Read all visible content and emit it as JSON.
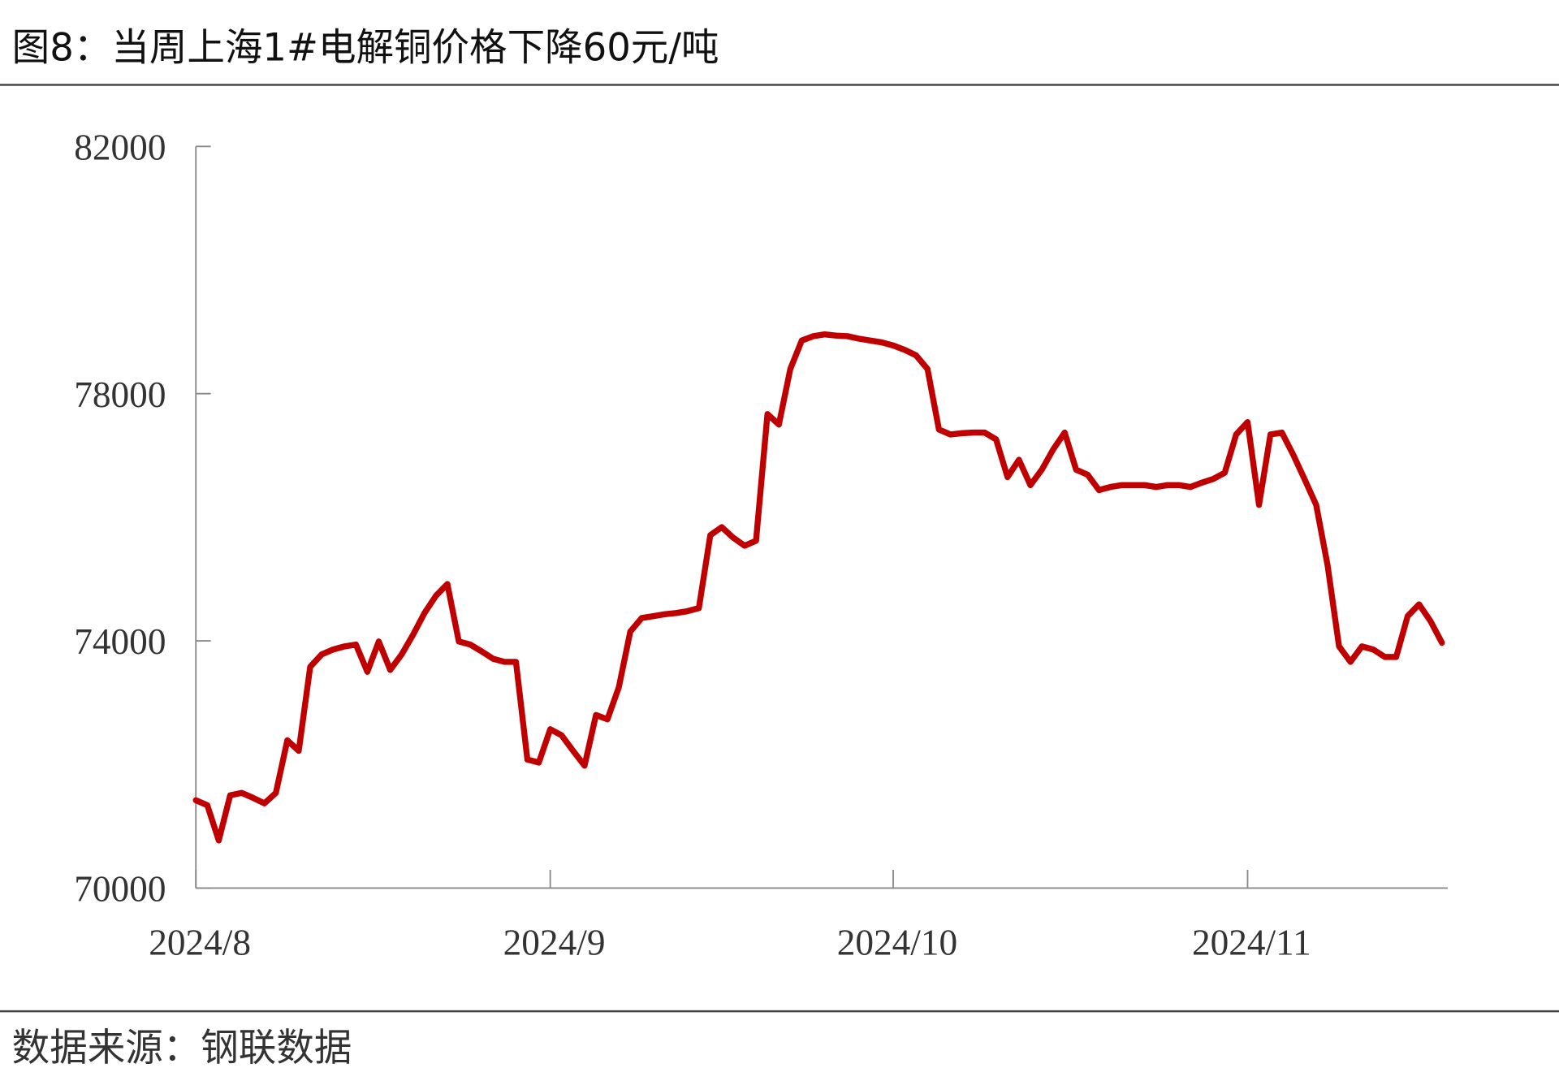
{
  "title": "图8：当周上海1#电解铜价格下降60元/吨",
  "source": "数据来源：钢联数据",
  "chart_data": {
    "type": "line",
    "x": [
      0,
      1,
      2,
      3,
      4,
      5,
      6,
      7,
      8,
      9,
      10,
      11,
      12,
      13,
      14,
      15,
      16,
      17,
      18,
      19,
      20,
      21,
      22,
      23,
      24,
      25,
      26,
      27,
      28,
      29,
      30,
      31,
      32,
      33,
      34,
      35,
      36,
      37,
      38,
      39,
      40,
      41,
      42,
      43,
      44,
      45,
      46,
      47,
      48,
      49,
      50,
      51,
      52,
      53,
      54,
      55,
      56,
      57,
      58,
      59,
      60,
      61,
      62,
      63,
      64,
      65,
      66,
      67,
      68,
      69,
      70,
      71,
      72,
      73,
      74,
      75,
      76,
      77,
      78,
      79,
      80,
      81,
      82,
      83,
      84,
      85,
      86,
      87,
      88,
      89,
      90,
      91,
      92,
      93,
      94,
      95,
      96,
      97,
      98,
      99,
      100,
      101,
      102,
      103,
      104,
      105,
      106,
      107,
      108,
      109
    ],
    "series": [
      {
        "color": "#c00000",
        "values": [
          71420,
          71340,
          70770,
          71500,
          71540,
          71460,
          71370,
          71540,
          72390,
          72220,
          73580,
          73780,
          73860,
          73910,
          73940,
          73500,
          73990,
          73530,
          73780,
          74100,
          74450,
          74730,
          74920,
          73990,
          73940,
          73830,
          73710,
          73660,
          73660,
          72080,
          72030,
          72570,
          72470,
          72220,
          71980,
          72800,
          72730,
          73250,
          74150,
          74370,
          74400,
          74430,
          74450,
          74480,
          74530,
          75710,
          75840,
          75670,
          75540,
          75620,
          77670,
          77500,
          78400,
          78860,
          78930,
          78960,
          78940,
          78930,
          78890,
          78860,
          78830,
          78780,
          78710,
          78620,
          78400,
          77420,
          77340,
          77360,
          77370,
          77370,
          77260,
          76650,
          76930,
          76520,
          76770,
          77100,
          77370,
          76770,
          76690,
          76440,
          76490,
          76520,
          76520,
          76520,
          76490,
          76520,
          76520,
          76490,
          76560,
          76620,
          76720,
          77340,
          77540,
          76200,
          77340,
          77370,
          77010,
          76610,
          76200,
          75220,
          73910,
          73660,
          73910,
          73860,
          73740,
          73740,
          74400,
          74590,
          74320,
          73970
        ]
      }
    ],
    "xlim": [
      0,
      109.5
    ],
    "xticks": [
      {
        "value": 0,
        "label": "2024/8"
      },
      {
        "value": 31,
        "label": "2024/9"
      },
      {
        "value": 61,
        "label": "2024/10"
      },
      {
        "value": 92,
        "label": "2024/11"
      }
    ],
    "ylim": [
      70000,
      82000
    ],
    "yticks": [
      70000,
      74000,
      78000,
      82000
    ]
  }
}
